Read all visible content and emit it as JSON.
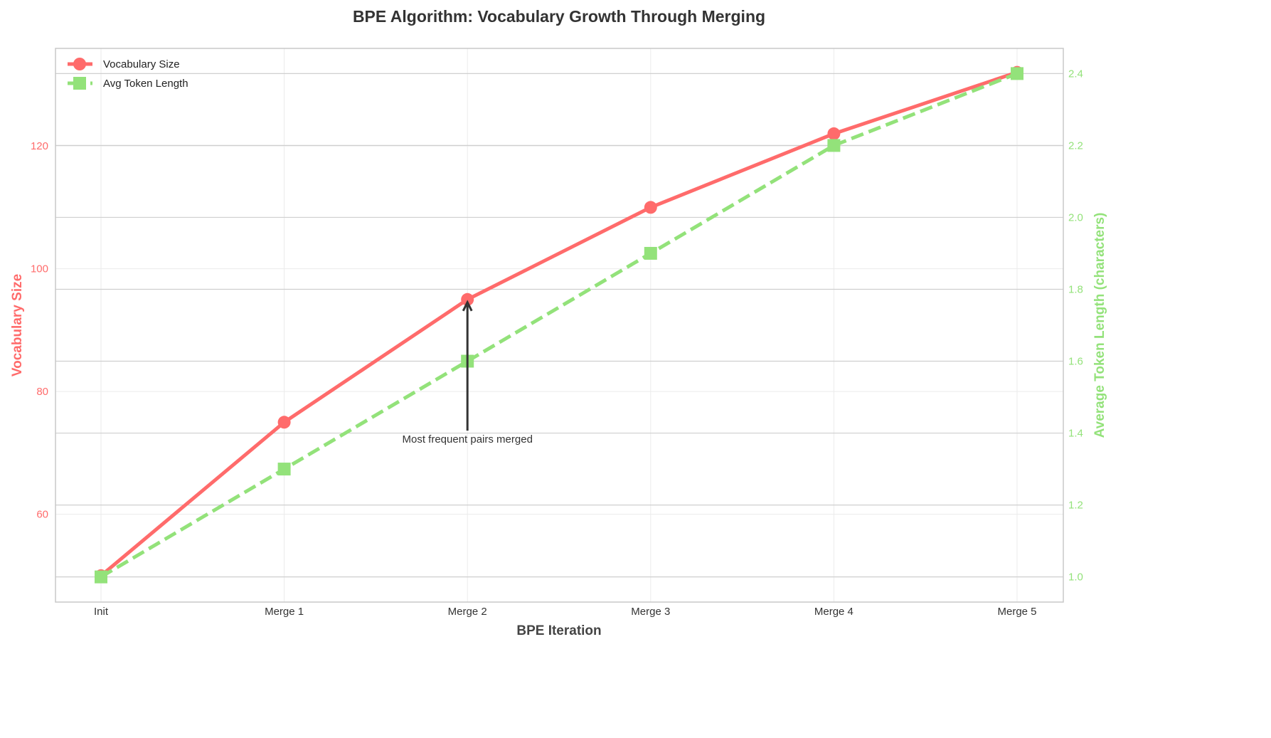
{
  "chart_data": {
    "type": "line",
    "title": "BPE Algorithm: Vocabulary Growth Through Merging",
    "xlabel": "BPE Iteration",
    "ylabel": "Vocabulary Size",
    "ylabel_right": "Average Token Length (characters)",
    "categories": [
      "Init",
      "Merge 1",
      "Merge 2",
      "Merge 3",
      "Merge 4",
      "Merge 5"
    ],
    "series": [
      {
        "name": "Vocabulary Size",
        "axis": "left",
        "values": [
          50,
          75,
          95,
          110,
          122,
          132
        ],
        "color": "#FF6B6B",
        "marker": "circle",
        "linestyle": "solid"
      },
      {
        "name": "Avg Token Length",
        "axis": "right",
        "values": [
          1.0,
          1.3,
          1.6,
          1.9,
          2.2,
          2.4
        ],
        "color": "#93E27A",
        "marker": "square",
        "linestyle": "dashed"
      }
    ],
    "ylim": [
      45.7,
      135.9
    ],
    "ylim_right": [
      0.93,
      2.47
    ],
    "yticks": [
      60,
      80,
      100,
      120
    ],
    "yticks_right": [
      1.0,
      1.2,
      1.4,
      1.6,
      1.8,
      2.0,
      2.2,
      2.4
    ],
    "grid": true,
    "legend": "top-left",
    "annotation": {
      "text": "Most frequent pairs merged",
      "category": "Merge 2",
      "points_to": 95,
      "text_y": 72
    }
  }
}
